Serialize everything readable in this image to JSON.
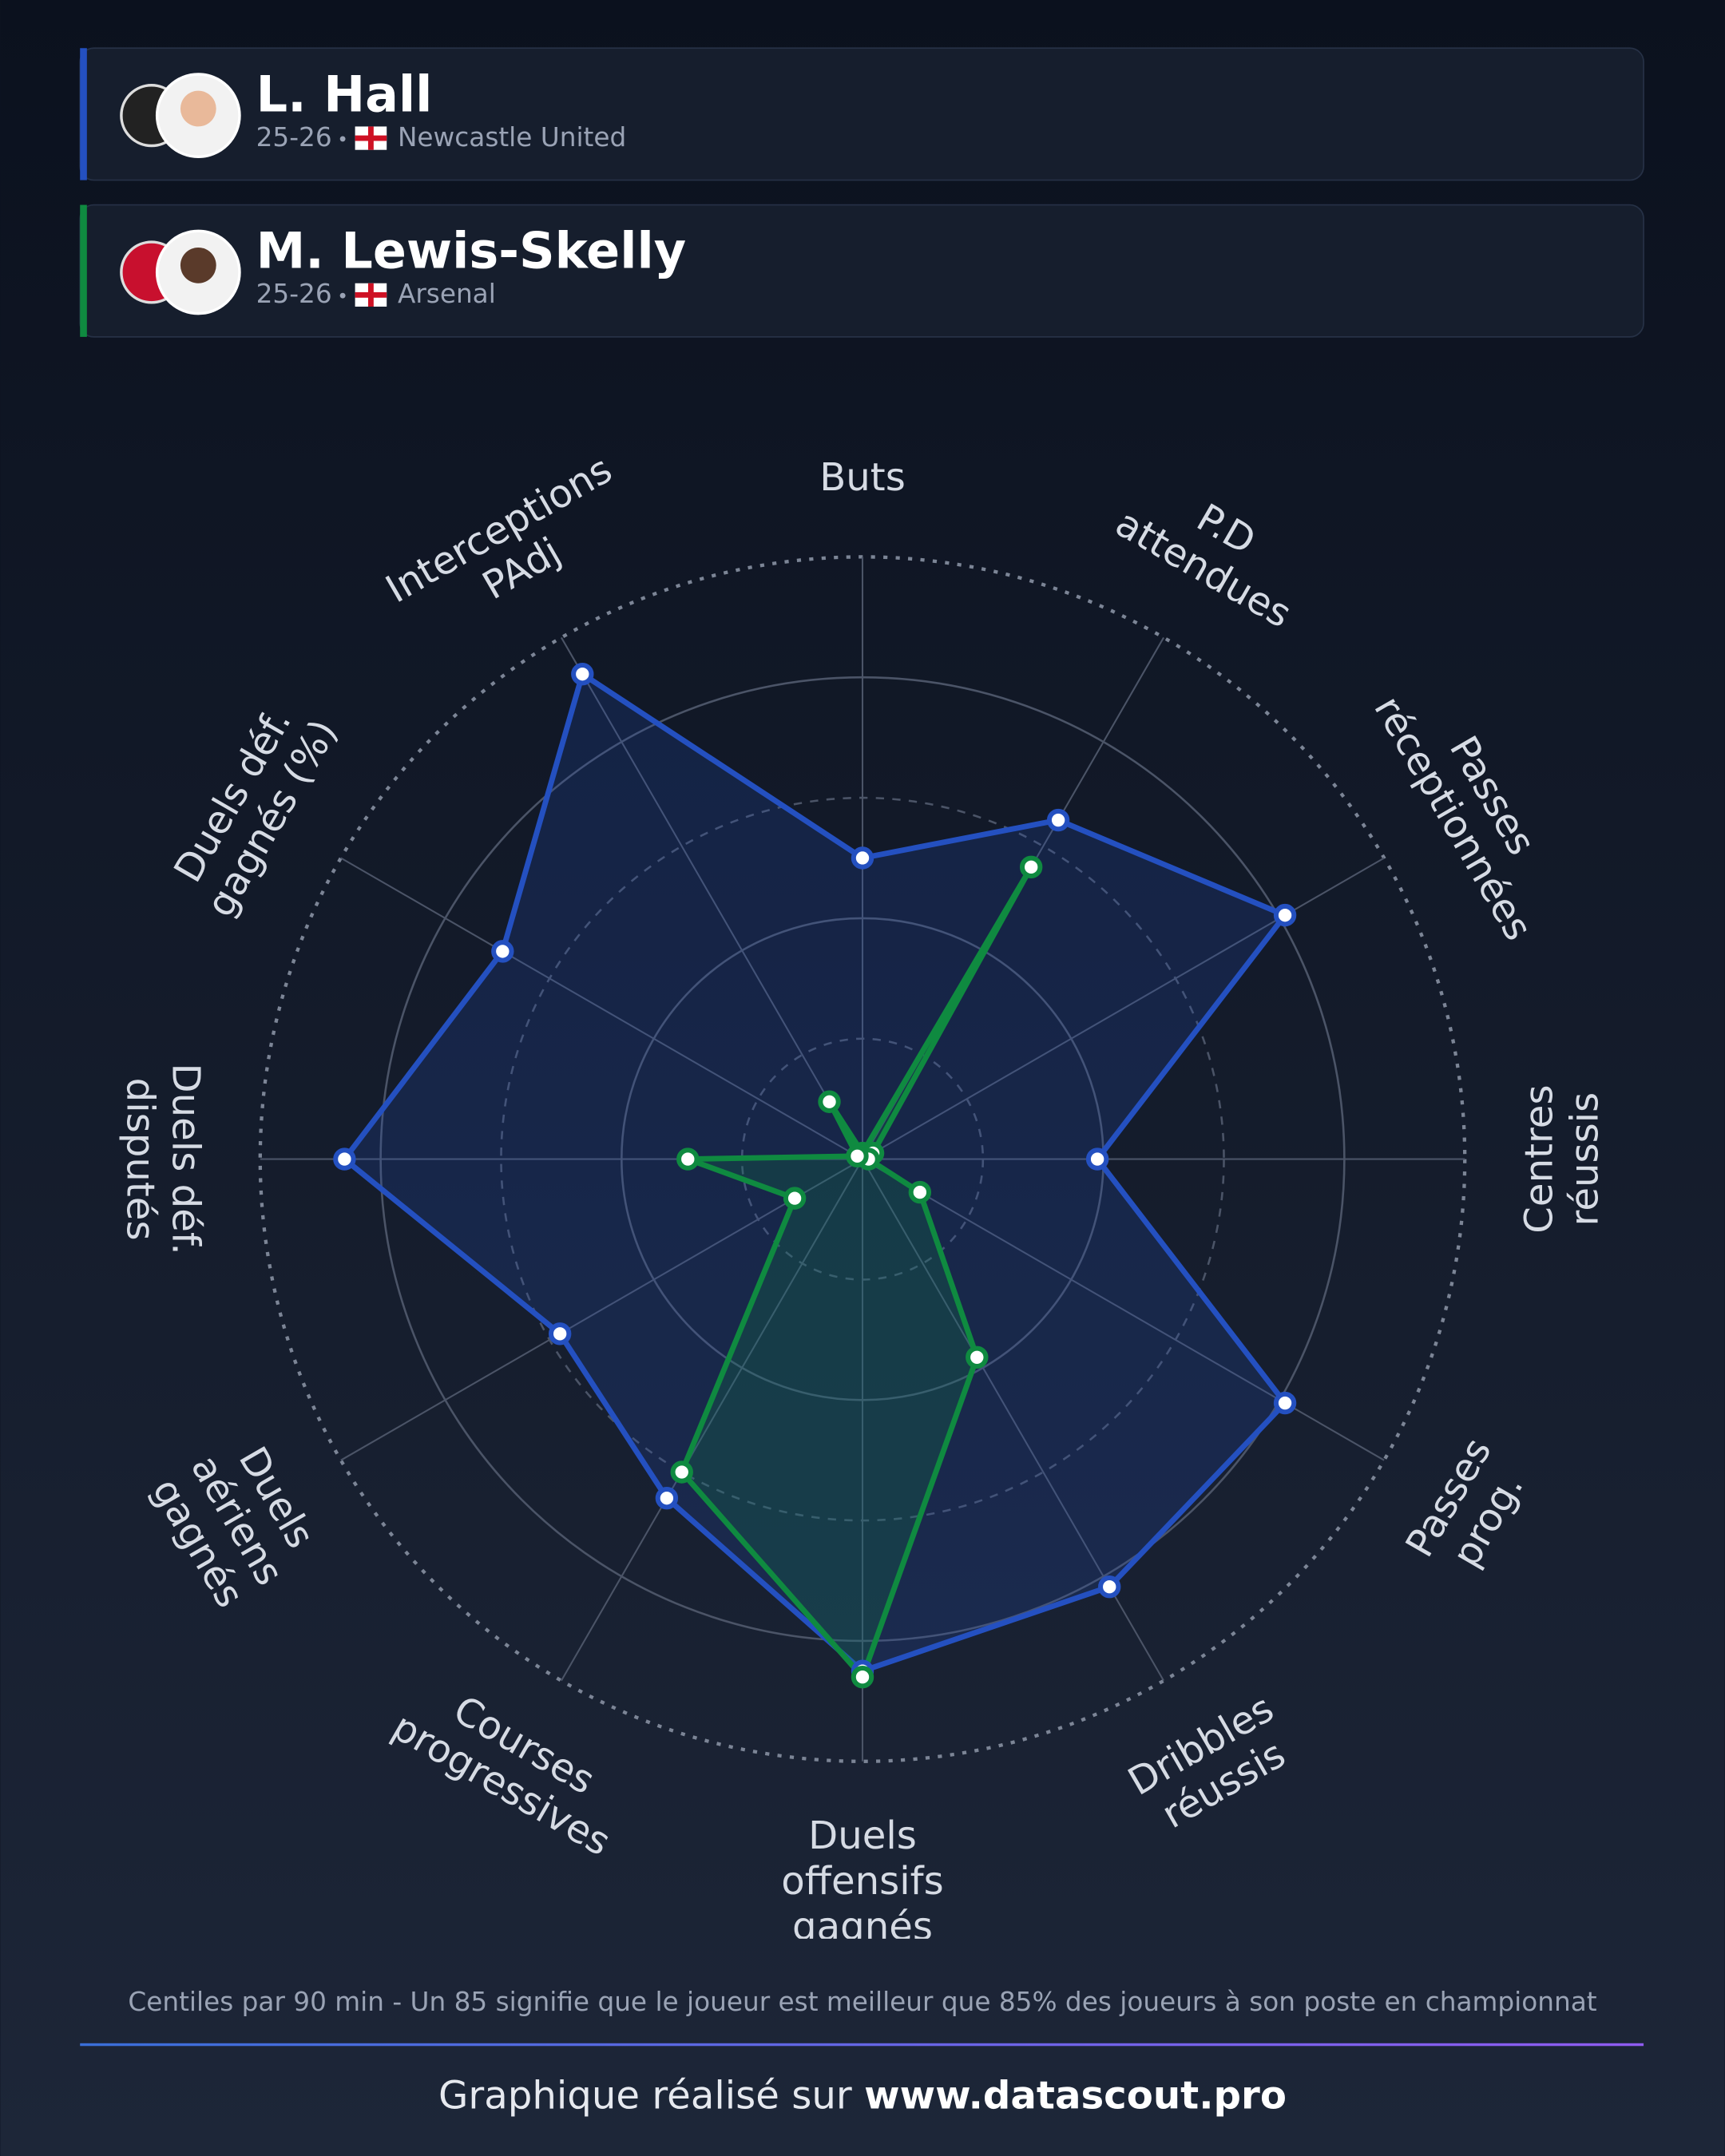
{
  "players": [
    {
      "season": "25-26",
      "club": "Newcastle United"
    },
    {
      "season": "25-26",
      "club": "Arsenal"
    }
  ],
  "chart_data": {
    "type": "radar",
    "categories": [
      [
        "Buts"
      ],
      [
        "P.D",
        "attendues"
      ],
      [
        "Passes",
        "réceptionnées"
      ],
      [
        "Centres",
        "réussis"
      ],
      [
        "Passes",
        "prog."
      ],
      [
        "Dribbles",
        "réussis"
      ],
      [
        "Duels",
        "offensifs",
        "gagnés"
      ],
      [
        "Courses",
        "progressives"
      ],
      [
        "Duels",
        "aériens",
        "gagnés"
      ],
      [
        "Duels déf.",
        "disputés"
      ],
      [
        "Duels déf.",
        "gagnés (%)"
      ],
      [
        "Interceptions",
        "PAdj"
      ]
    ],
    "series": [
      {
        "name": "L. Hall",
        "color": "#2450c0",
        "values": [
          50,
          65,
          81,
          39,
          81,
          82,
          85,
          65,
          58,
          86,
          69,
          93
        ]
      },
      {
        "name": "M. Lewis-Skelly",
        "color": "#0f8a40",
        "values": [
          1,
          56,
          2,
          1,
          11,
          38,
          86,
          60,
          13,
          29,
          1,
          11
        ]
      }
    ],
    "rlim": [
      0,
      100
    ],
    "rticks": [
      20,
      40,
      60,
      80,
      100
    ]
  },
  "note": "Centiles par 90 min - Un 85 signifie que le joueur est meilleur que 85% des joueurs à son poste en championnat",
  "footer": {
    "text": "Graphique réalisé sur",
    "link": "www.datascout.pro"
  }
}
